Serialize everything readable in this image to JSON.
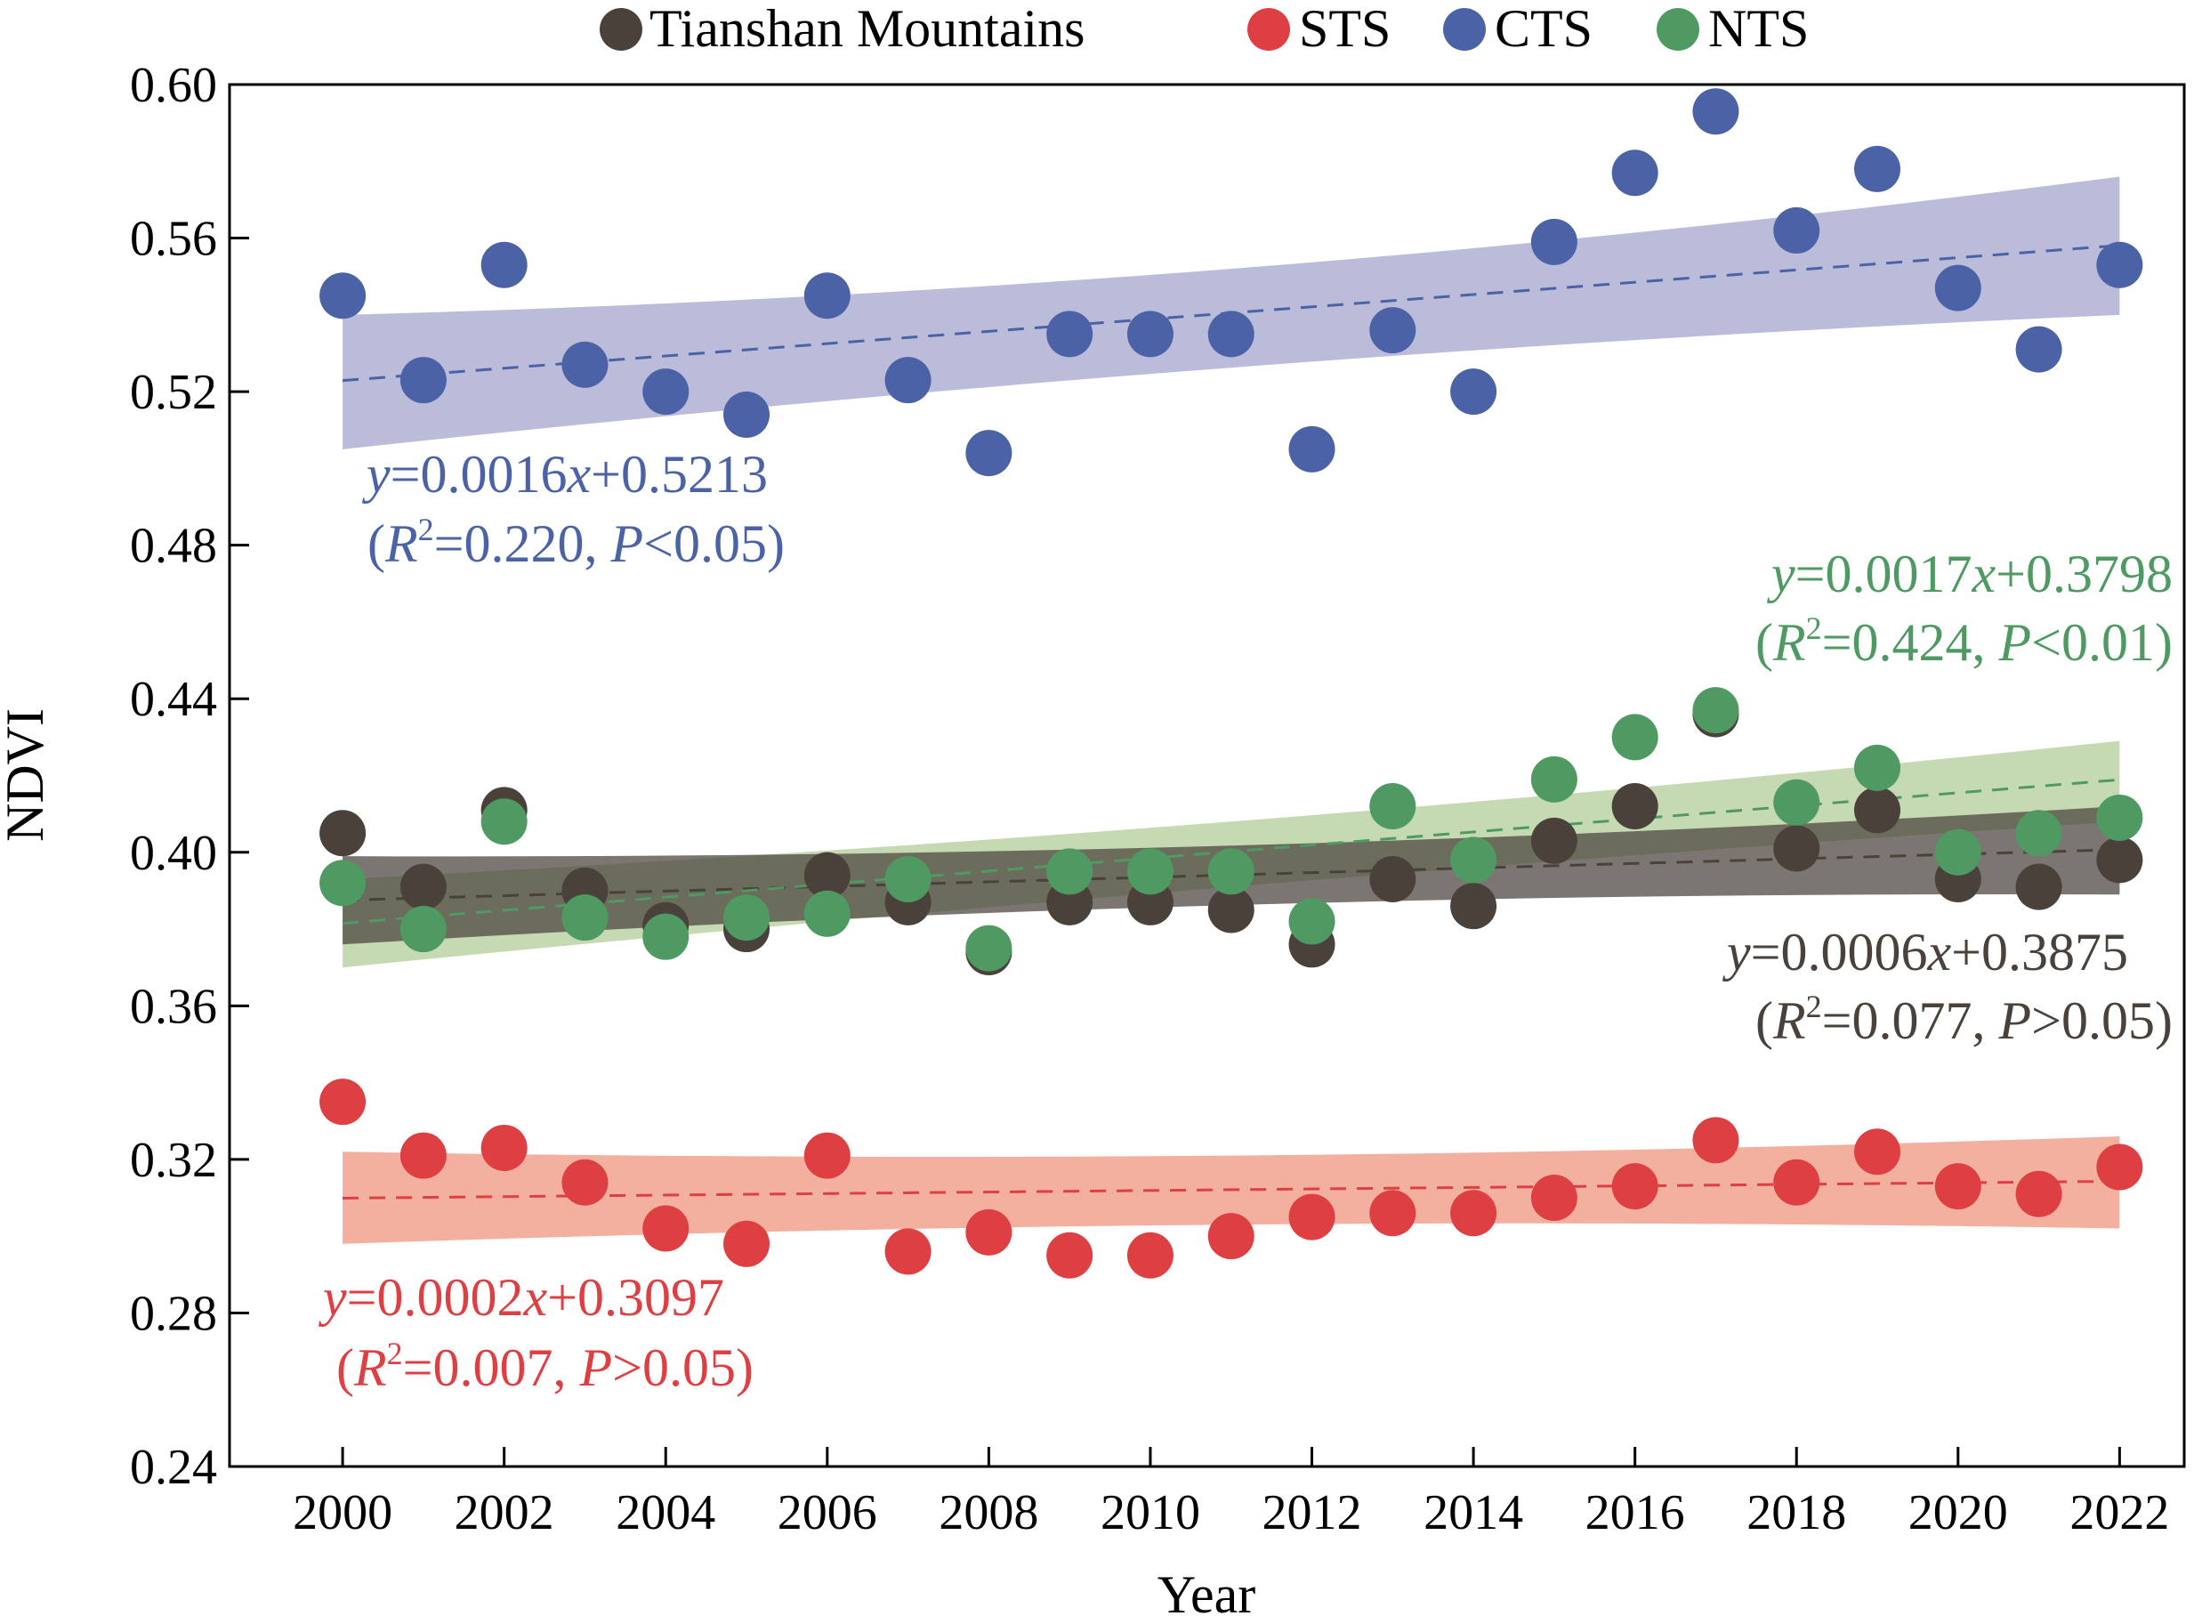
{
  "chart_data": {
    "type": "scatter",
    "xlabel": "Year",
    "ylabel": "NDVI",
    "xlim": [
      1998.6,
      2022.8
    ],
    "ylim": [
      0.24,
      0.6
    ],
    "xticks": [
      2000,
      2002,
      2004,
      2006,
      2008,
      2010,
      2012,
      2014,
      2016,
      2018,
      2020,
      2022
    ],
    "yticks": [
      0.24,
      0.28,
      0.32,
      0.36,
      0.4,
      0.44,
      0.48,
      0.52,
      0.56,
      0.6
    ],
    "ytick_labels": [
      "0.24",
      "0.28",
      "0.32",
      "0.36",
      "0.40",
      "0.44",
      "0.48",
      "0.52",
      "0.56",
      "0.60"
    ],
    "x": [
      2000,
      2001,
      2002,
      2003,
      2004,
      2005,
      2006,
      2007,
      2008,
      2009,
      2010,
      2011,
      2012,
      2013,
      2014,
      2015,
      2016,
      2017,
      2018,
      2019,
      2020,
      2021,
      2022
    ],
    "legend": [
      "Tianshan Mountains",
      "STS",
      "CTS",
      "NTS"
    ],
    "series": [
      {
        "name": "Tianshan Mountains",
        "color": "#4a413b",
        "band_color": "#4a413b",
        "values": [
          0.405,
          0.391,
          0.411,
          0.39,
          0.381,
          0.38,
          0.394,
          0.387,
          0.374,
          0.387,
          0.387,
          0.385,
          0.376,
          0.393,
          0.386,
          0.403,
          0.412,
          0.436,
          0.401,
          0.411,
          0.393,
          0.391,
          0.398
        ],
        "trend": [
          0.3875,
          0.4007
        ],
        "ci": {
          "start": [
            0.376,
            0.399
          ],
          "mid": [
            0.39,
            0.398
          ],
          "end": [
            0.389,
            0.412
          ]
        },
        "equation": {
          "y": "y",
          "eq": "=0.0006",
          "x": "x",
          "rest": "+0.3875",
          "r_open": "(",
          "R": "R",
          "sup": "2",
          "r_val": "=0.077, ",
          "P": "P",
          "p_val": ">0.05)"
        }
      },
      {
        "name": "STS",
        "color": "#de3f43",
        "band_color": "#f09a84",
        "values": [
          0.335,
          0.321,
          0.323,
          0.314,
          0.302,
          0.298,
          0.321,
          0.296,
          0.301,
          0.295,
          0.295,
          0.3,
          0.305,
          0.306,
          0.306,
          0.31,
          0.313,
          0.325,
          0.314,
          0.322,
          0.313,
          0.311,
          0.318
        ],
        "trend": [
          0.3099,
          0.3143
        ],
        "ci": {
          "start": [
            0.298,
            0.322
          ],
          "mid": [
            0.306,
            0.318
          ],
          "end": [
            0.302,
            0.326
          ]
        },
        "equation": {
          "y": "y",
          "eq": "=0.0002",
          "x": "x",
          "rest": "+0.3097",
          "r_open": "(",
          "R": "R",
          "sup": "2",
          "r_val": "=0.007, ",
          "P": "P",
          "p_val": ">0.05)"
        }
      },
      {
        "name": "CTS",
        "color": "#4b63a6",
        "band_color": "#a8a8d0",
        "values": [
          0.545,
          0.523,
          0.553,
          0.527,
          0.52,
          0.514,
          0.545,
          0.523,
          0.504,
          0.535,
          0.535,
          0.535,
          0.505,
          0.536,
          0.52,
          0.559,
          0.577,
          0.593,
          0.562,
          0.578,
          0.547,
          0.531,
          0.553
        ],
        "trend": [
          0.5229,
          0.5581
        ],
        "ci": {
          "start": [
            0.505,
            0.54
          ],
          "mid": [
            0.53,
            0.546
          ],
          "end": [
            0.54,
            0.576
          ]
        },
        "equation": {
          "y": "y",
          "eq": "=0.0016",
          "x": "x",
          "rest": "+0.5213",
          "r_open": "(",
          "R": "R",
          "sup": "2",
          "r_val": "=0.220, ",
          "P": "P",
          "p_val": "<0.05)"
        }
      },
      {
        "name": "NTS",
        "color": "#4e9a62",
        "band_color": "#b5cf9e",
        "values": [
          0.392,
          0.38,
          0.408,
          0.383,
          0.378,
          0.383,
          0.384,
          0.393,
          0.375,
          0.395,
          0.395,
          0.395,
          0.382,
          0.412,
          0.398,
          0.419,
          0.43,
          0.437,
          0.413,
          0.422,
          0.4,
          0.405,
          0.409
        ],
        "trend": [
          0.3815,
          0.4189
        ],
        "ci": {
          "start": [
            0.37,
            0.393
          ],
          "mid": [
            0.393,
            0.405
          ],
          "end": [
            0.408,
            0.429
          ]
        },
        "equation": {
          "y": "y",
          "eq": "=0.0017",
          "x": "x",
          "rest": "+0.3798",
          "r_open": "(",
          "R": "R",
          "sup": "2",
          "r_val": "=0.424, ",
          "P": "P",
          "p_val": "<0.01)"
        }
      }
    ]
  }
}
